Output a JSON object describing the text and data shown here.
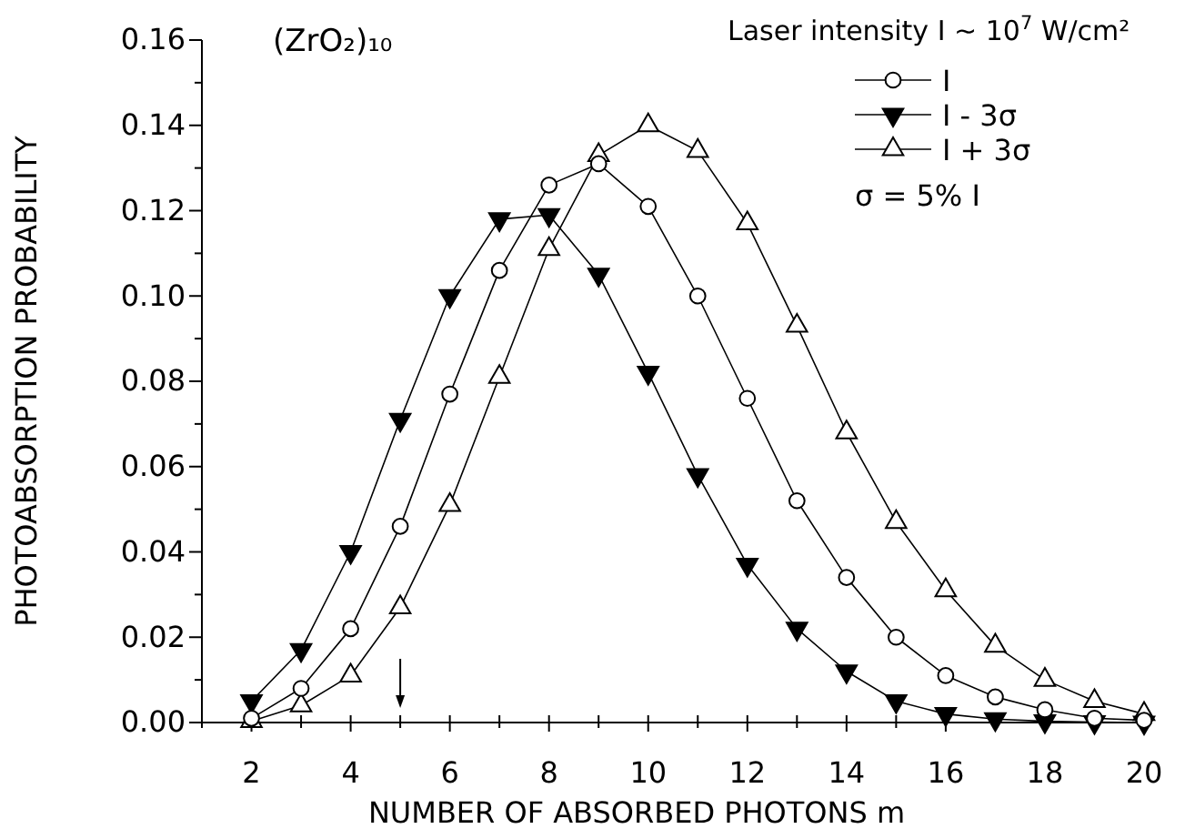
{
  "chart_data": {
    "type": "line",
    "title": "(ZrO₂)₁₀",
    "xlabel": "NUMBER OF ABSORBED PHOTONS  m",
    "ylabel": "PHOTOABSORPTION PROBABILITY",
    "legend_title": "Laser intensity I ~ 10$^{7}$ W/cm²",
    "annotations": [
      "σ = 5% I"
    ],
    "x": [
      2,
      3,
      4,
      5,
      6,
      7,
      8,
      9,
      10,
      11,
      12,
      13,
      14,
      15,
      16,
      17,
      18,
      19,
      20
    ],
    "xlim": [
      1,
      20
    ],
    "xticks": [
      {
        "value": 1,
        "label": null
      },
      2,
      {
        "value": 3,
        "label": null
      },
      4,
      {
        "value": 5,
        "label": null
      },
      6,
      {
        "value": 7,
        "label": null
      },
      8,
      {
        "value": 9,
        "label": null
      },
      10,
      {
        "value": 11,
        "label": null
      },
      12,
      {
        "value": 13,
        "label": null
      },
      14,
      {
        "value": 15,
        "label": null
      },
      16,
      {
        "value": 17,
        "label": null
      },
      18,
      {
        "value": 19,
        "label": null
      },
      20
    ],
    "ylim": [
      0,
      0.16
    ],
    "yticks": [
      {
        "value": 0,
        "label": "0.00"
      },
      {
        "value": 0.01,
        "label": null
      },
      {
        "value": 0.02,
        "label": "0.02"
      },
      {
        "value": 0.03,
        "label": null
      },
      {
        "value": 0.04,
        "label": "0.04"
      },
      {
        "value": 0.05,
        "label": null
      },
      {
        "value": 0.06,
        "label": "0.06"
      },
      {
        "value": 0.07,
        "label": null
      },
      {
        "value": 0.08,
        "label": "0.08"
      },
      {
        "value": 0.09,
        "label": null
      },
      {
        "value": 0.1,
        "label": "0.10"
      },
      {
        "value": 0.11,
        "label": null
      },
      {
        "value": 0.12,
        "label": "0.12"
      },
      {
        "value": 0.13,
        "label": null
      },
      {
        "value": 0.14,
        "label": "0.14"
      },
      {
        "value": 0.15,
        "label": null
      },
      {
        "value": 0.16,
        "label": "0.16"
      }
    ],
    "grid": false,
    "legend": "top right",
    "line_style": "solid",
    "series": [
      {
        "name": "I",
        "color": "#000000",
        "marker": "circle",
        "values": [
          0.001,
          0.008,
          0.022,
          0.046,
          0.077,
          0.106,
          0.126,
          0.131,
          0.121,
          0.1,
          0.076,
          0.052,
          0.034,
          0.02,
          0.011,
          0.006,
          0.003,
          0.001,
          0.0005
        ]
      },
      {
        "name": "I - 3σ",
        "color": "#000000",
        "marker": "triangle-down",
        "values": [
          0.005,
          0.017,
          0.04,
          0.071,
          0.1,
          0.118,
          0.119,
          0.105,
          0.082,
          0.058,
          0.037,
          0.022,
          0.012,
          0.005,
          0.002,
          0.0008,
          0.0003,
          0.0001,
          0
        ]
      },
      {
        "name": "I + 3σ",
        "color": "#000000",
        "marker": "triangle",
        "values": [
          0.0003,
          0.004,
          0.011,
          0.027,
          0.051,
          0.081,
          0.111,
          0.133,
          0.14,
          0.134,
          0.117,
          0.093,
          0.068,
          0.047,
          0.031,
          0.018,
          0.01,
          0.005,
          0.002
        ]
      }
    ]
  }
}
